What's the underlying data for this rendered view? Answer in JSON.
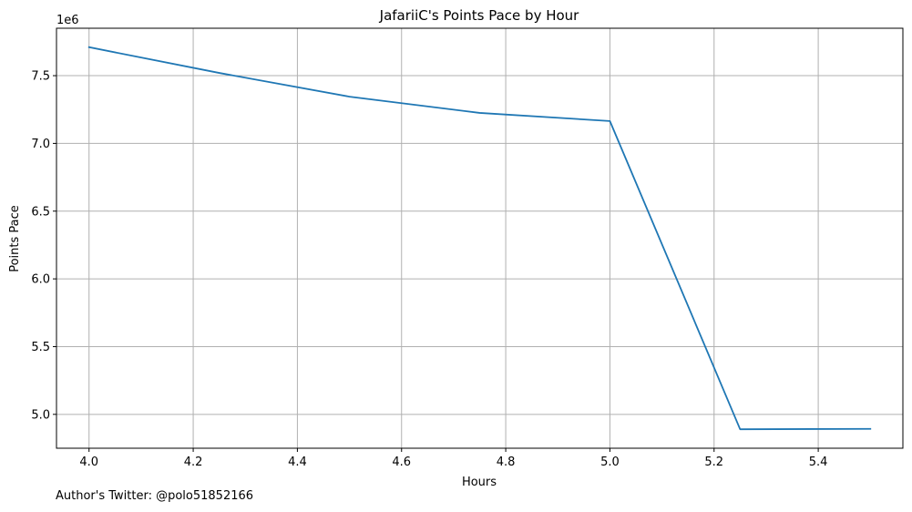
{
  "chart_data": {
    "type": "line",
    "title": "JafariiC's Points Pace by Hour",
    "xlabel": "Hours",
    "ylabel": "Points Pace",
    "y_offset_label": "1e6",
    "xlim": [
      3.9375,
      5.5625
    ],
    "ylim": [
      4.75,
      7.85
    ],
    "x_ticks": [
      4.0,
      4.2,
      4.4,
      4.6,
      4.8,
      5.0,
      5.2,
      5.4
    ],
    "x_tick_labels": [
      "4.0",
      "4.2",
      "4.4",
      "4.6",
      "4.8",
      "5.0",
      "5.2",
      "5.4"
    ],
    "y_ticks": [
      5.0,
      5.5,
      6.0,
      6.5,
      7.0,
      7.5
    ],
    "y_tick_labels": [
      "5.0",
      "5.5",
      "6.0",
      "6.5",
      "7.0",
      "7.5"
    ],
    "grid": true,
    "series": [
      {
        "color": "#1f77b4",
        "x": [
          4.0,
          4.25,
          4.5,
          4.75,
          5.0,
          5.25,
          5.5
        ],
        "y": [
          7.71,
          7.52,
          7.345,
          7.225,
          7.165,
          4.89,
          4.893
        ]
      }
    ]
  },
  "footer": {
    "note": "Author's Twitter: @polo51852166"
  },
  "colors": {
    "grid": "#b0b0b0",
    "axis": "#000000",
    "line": "#1f77b4"
  }
}
